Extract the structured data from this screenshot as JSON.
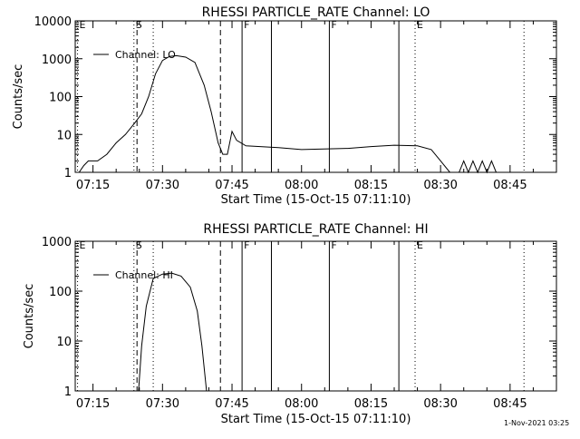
{
  "footer_timestamp": "1-Nov-2021 03:25",
  "chart_data": [
    {
      "type": "line",
      "title": "RHESSI PARTICLE_RATE Channel: LO",
      "xlabel": "Start Time (15-Oct-15 07:11:10)",
      "ylabel": "Counts/sec",
      "yscale": "log",
      "xlim": [
        "07:11:10",
        "08:55:00"
      ],
      "ylim": [
        1,
        10000
      ],
      "xticks": [
        "07:15",
        "07:30",
        "07:45",
        "08:00",
        "08:15",
        "08:30",
        "08:45"
      ],
      "yticks": [
        "1",
        "10",
        "100",
        "1000",
        "10000"
      ],
      "legend": "top-left",
      "series": [
        {
          "name": "Channel: LO",
          "points": [
            [
              "07:11:10",
              1.0
            ],
            [
              "07:12:00",
              1.0
            ],
            [
              "07:13:00",
              1.5
            ],
            [
              "07:14:00",
              2.0
            ],
            [
              "07:16:00",
              2.0
            ],
            [
              "07:18:00",
              3.0
            ],
            [
              "07:20:00",
              6.0
            ],
            [
              "07:22:00",
              10.0
            ],
            [
              "07:24:00",
              20.0
            ],
            [
              "07:25:30",
              35.0
            ],
            [
              "07:27:00",
              100.0
            ],
            [
              "07:28:30",
              400.0
            ],
            [
              "07:30:00",
              900.0
            ],
            [
              "07:31:30",
              1150.0
            ],
            [
              "07:33:00",
              1200.0
            ],
            [
              "07:35:00",
              1100.0
            ],
            [
              "07:37:00",
              800.0
            ],
            [
              "07:39:00",
              200.0
            ],
            [
              "07:40:30",
              40.0
            ],
            [
              "07:42:00",
              6.0
            ],
            [
              "07:43:00",
              3.0
            ],
            [
              "07:44:00",
              3.0
            ],
            [
              "07:45:00",
              12.0
            ],
            [
              "07:46:00",
              7.0
            ],
            [
              "07:48:00",
              5.0
            ],
            [
              "07:55:00",
              4.5
            ],
            [
              "08:00:00",
              4.0
            ],
            [
              "08:10:00",
              4.3
            ],
            [
              "08:15:00",
              4.8
            ],
            [
              "08:20:00",
              5.2
            ],
            [
              "08:25:00",
              5.0
            ],
            [
              "08:28:00",
              4.0
            ],
            [
              "08:30:00",
              2.0
            ],
            [
              "08:32:00",
              1.0
            ],
            [
              "08:34:00",
              1.0
            ],
            [
              "08:35:00",
              2.0
            ],
            [
              "08:36:00",
              1.0
            ],
            [
              "08:37:00",
              2.0
            ],
            [
              "08:38:00",
              1.0
            ],
            [
              "08:39:00",
              2.0
            ],
            [
              "08:40:00",
              1.0
            ],
            [
              "08:41:00",
              2.0
            ],
            [
              "08:42:00",
              1.0
            ]
          ]
        }
      ],
      "markers": [
        {
          "label": "E",
          "time": "07:11:40",
          "style": "dotted"
        },
        {
          "label": "S",
          "time": "07:23:50",
          "style": "dotted"
        },
        {
          "label": "",
          "time": "07:24:30",
          "style": "dashed"
        },
        {
          "label": "",
          "time": "07:28:00",
          "style": "dotted"
        },
        {
          "label": "",
          "time": "07:42:30",
          "style": "dashed"
        },
        {
          "label": "F",
          "time": "07:47:10",
          "style": "solid"
        },
        {
          "label": "",
          "time": "07:53:30",
          "style": "solid"
        },
        {
          "label": "F",
          "time": "08:06:00",
          "style": "solid"
        },
        {
          "label": "",
          "time": "08:21:00",
          "style": "solid"
        },
        {
          "label": "E",
          "time": "08:24:30",
          "style": "dotted"
        },
        {
          "label": "",
          "time": "08:48:00",
          "style": "dotted"
        }
      ]
    },
    {
      "type": "line",
      "title": "RHESSI PARTICLE_RATE Channel: HI",
      "xlabel": "Start Time (15-Oct-15 07:11:10)",
      "ylabel": "Counts/sec",
      "yscale": "log",
      "xlim": [
        "07:11:10",
        "08:55:00"
      ],
      "ylim": [
        1,
        1000
      ],
      "xticks": [
        "07:15",
        "07:30",
        "07:45",
        "08:00",
        "08:15",
        "08:30",
        "08:45"
      ],
      "yticks": [
        "1",
        "10",
        "100",
        "1000"
      ],
      "legend": "top-left",
      "series": [
        {
          "name": "Channel: HI",
          "points": [
            [
              "07:24:50",
              1.0
            ],
            [
              "07:25:30",
              8.0
            ],
            [
              "07:26:30",
              50.0
            ],
            [
              "07:28:00",
              180.0
            ],
            [
              "07:30:00",
              220.0
            ],
            [
              "07:32:00",
              230.0
            ],
            [
              "07:34:00",
              200.0
            ],
            [
              "07:36:00",
              120.0
            ],
            [
              "07:37:30",
              40.0
            ],
            [
              "07:38:30",
              8.0
            ],
            [
              "07:39:30",
              1.0
            ]
          ]
        }
      ],
      "markers": [
        {
          "label": "E",
          "time": "07:11:40",
          "style": "dotted"
        },
        {
          "label": "S",
          "time": "07:23:50",
          "style": "dotted"
        },
        {
          "label": "",
          "time": "07:24:30",
          "style": "dashed"
        },
        {
          "label": "",
          "time": "07:28:00",
          "style": "dotted"
        },
        {
          "label": "",
          "time": "07:42:30",
          "style": "dashed"
        },
        {
          "label": "F",
          "time": "07:47:10",
          "style": "solid"
        },
        {
          "label": "",
          "time": "07:53:30",
          "style": "solid"
        },
        {
          "label": "F",
          "time": "08:06:00",
          "style": "solid"
        },
        {
          "label": "",
          "time": "08:21:00",
          "style": "solid"
        },
        {
          "label": "E",
          "time": "08:24:30",
          "style": "dotted"
        },
        {
          "label": "",
          "time": "08:48:00",
          "style": "dotted"
        }
      ]
    }
  ]
}
